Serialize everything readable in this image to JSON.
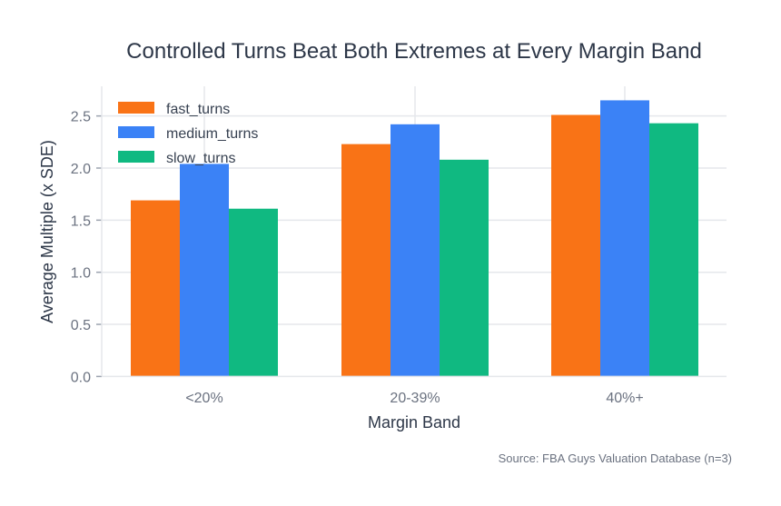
{
  "chart_data": {
    "type": "bar",
    "title": "Controlled Turns Beat Both Extremes at Every Margin Band",
    "xlabel": "Margin Band",
    "ylabel": "Average Multiple (x SDE)",
    "categories": [
      "<20%",
      "20-39%",
      "40%+"
    ],
    "series": [
      {
        "name": "fast_turns",
        "color": "#f97316",
        "values": [
          1.69,
          2.23,
          2.51
        ]
      },
      {
        "name": "medium_turns",
        "color": "#3b82f6",
        "values": [
          2.04,
          2.42,
          2.65
        ]
      },
      {
        "name": "slow_turns",
        "color": "#10b981",
        "values": [
          1.61,
          2.08,
          2.43
        ]
      }
    ],
    "ylim": [
      0,
      2.8
    ],
    "yticks": [
      "0.0",
      "0.5",
      "1.0",
      "1.5",
      "2.0",
      "2.5"
    ],
    "grid": true,
    "legend": "top-left",
    "annotation": "Source: FBA Guys Valuation Database (n=3)"
  }
}
